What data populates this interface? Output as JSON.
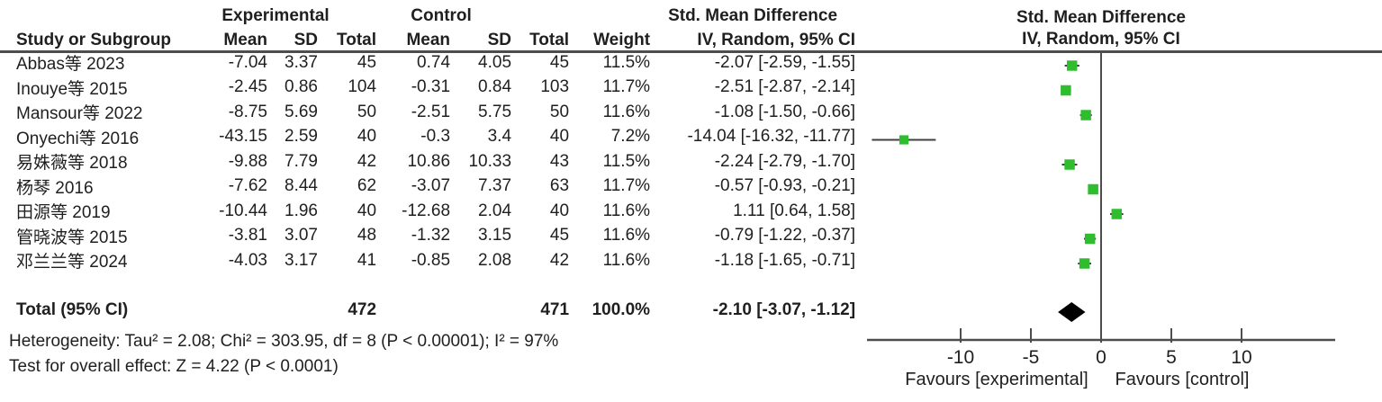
{
  "chart_data": {
    "type": "scatter",
    "subtype": "forest-plot-meta-analysis",
    "effect_measure": "Std. Mean Difference",
    "method": "IV, Random, 95% CI",
    "group_headers": {
      "experimental": "Experimental",
      "control": "Control"
    },
    "col_headers": [
      "Study or Subgroup",
      "Mean",
      "SD",
      "Total",
      "Mean",
      "SD",
      "Total",
      "Weight",
      "IV, Random, 95% CI"
    ],
    "studies": [
      {
        "name": "Abbas等 2023",
        "exp_mean": "-7.04",
        "exp_sd": "3.37",
        "exp_total": "45",
        "ctl_mean": "0.74",
        "ctl_sd": "4.05",
        "ctl_total": "45",
        "weight": "11.5%",
        "ci_text": "-2.07 [-2.59, -1.55]",
        "smd": -2.07,
        "lo": -2.59,
        "hi": -1.55,
        "weight_pct": 11.5
      },
      {
        "name": "Inouye等 2015",
        "exp_mean": "-2.45",
        "exp_sd": "0.86",
        "exp_total": "104",
        "ctl_mean": "-0.31",
        "ctl_sd": "0.84",
        "ctl_total": "103",
        "weight": "11.7%",
        "ci_text": "-2.51 [-2.87, -2.14]",
        "smd": -2.51,
        "lo": -2.87,
        "hi": -2.14,
        "weight_pct": 11.7
      },
      {
        "name": "Mansour等 2022",
        "exp_mean": "-8.75",
        "exp_sd": "5.69",
        "exp_total": "50",
        "ctl_mean": "-2.51",
        "ctl_sd": "5.75",
        "ctl_total": "50",
        "weight": "11.6%",
        "ci_text": "-1.08 [-1.50, -0.66]",
        "smd": -1.08,
        "lo": -1.5,
        "hi": -0.66,
        "weight_pct": 11.6
      },
      {
        "name": "Onyechi等 2016",
        "exp_mean": "-43.15",
        "exp_sd": "2.59",
        "exp_total": "40",
        "ctl_mean": "-0.3",
        "ctl_sd": "3.4",
        "ctl_total": "40",
        "weight": "7.2%",
        "ci_text": "-14.04 [-16.32, -11.77]",
        "smd": -14.04,
        "lo": -16.32,
        "hi": -11.77,
        "weight_pct": 7.2
      },
      {
        "name": "易姝薇等 2018",
        "exp_mean": "-9.88",
        "exp_sd": "7.79",
        "exp_total": "42",
        "ctl_mean": "10.86",
        "ctl_sd": "10.33",
        "ctl_total": "43",
        "weight": "11.5%",
        "ci_text": "-2.24 [-2.79, -1.70]",
        "smd": -2.24,
        "lo": -2.79,
        "hi": -1.7,
        "weight_pct": 11.5
      },
      {
        "name": "杨琴 2016",
        "exp_mean": "-7.62",
        "exp_sd": "8.44",
        "exp_total": "62",
        "ctl_mean": "-3.07",
        "ctl_sd": "7.37",
        "ctl_total": "63",
        "weight": "11.7%",
        "ci_text": "-0.57 [-0.93, -0.21]",
        "smd": -0.57,
        "lo": -0.93,
        "hi": -0.21,
        "weight_pct": 11.7
      },
      {
        "name": "田源等 2019",
        "exp_mean": "-10.44",
        "exp_sd": "1.96",
        "exp_total": "40",
        "ctl_mean": "-12.68",
        "ctl_sd": "2.04",
        "ctl_total": "40",
        "weight": "11.6%",
        "ci_text": "1.11 [0.64, 1.58]",
        "smd": 1.11,
        "lo": 0.64,
        "hi": 1.58,
        "weight_pct": 11.6
      },
      {
        "name": "管晓波等 2015",
        "exp_mean": "-3.81",
        "exp_sd": "3.07",
        "exp_total": "48",
        "ctl_mean": "-1.32",
        "ctl_sd": "3.15",
        "ctl_total": "45",
        "weight": "11.6%",
        "ci_text": "-0.79 [-1.22, -0.37]",
        "smd": -0.79,
        "lo": -1.22,
        "hi": -0.37,
        "weight_pct": 11.6
      },
      {
        "name": "邓兰兰等 2024",
        "exp_mean": "-4.03",
        "exp_sd": "3.17",
        "exp_total": "41",
        "ctl_mean": "-0.85",
        "ctl_sd": "2.08",
        "ctl_total": "42",
        "weight": "11.6%",
        "ci_text": "-1.18 [-1.65, -0.71]",
        "smd": -1.18,
        "lo": -1.65,
        "hi": -0.71,
        "weight_pct": 11.6
      }
    ],
    "total": {
      "label": "Total (95% CI)",
      "exp_total": "472",
      "ctl_total": "471",
      "weight": "100.0%",
      "ci_text": "-2.10 [-3.07, -1.12]",
      "smd": -2.1,
      "lo": -3.07,
      "hi": -1.12
    },
    "footnotes": [
      "Heterogeneity: Tau² = 2.08; Chi² = 303.95, df = 8 (P < 0.00001); I² = 97%",
      "Test for overall effect: Z = 4.22 (P < 0.0001)"
    ],
    "axis": {
      "ticks": [
        -10,
        -5,
        0,
        5,
        10
      ],
      "min": -16.7,
      "max": 16.7,
      "favours_left": "Favours [experimental]",
      "favours_right": "Favours [control]"
    },
    "colors": {
      "marker_green": "#2dbd2d",
      "diamond": "#000000",
      "line": "#4d4d4d",
      "text": "#1f1f1f"
    }
  }
}
